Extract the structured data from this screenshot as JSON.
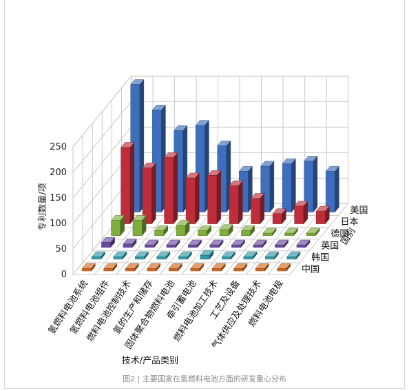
{
  "chart_data": {
    "type": "bar3d",
    "categories": [
      "氢燃料电池系统",
      "氢燃料电池组件",
      "燃料电池控制技术",
      "氢的生产和储存",
      "固体聚合物燃料电池",
      "牵引蓄电池",
      "燃料电池加工技术",
      "工艺及设备",
      "气体供应及处理技术",
      "燃料电池电极"
    ],
    "series": [
      {
        "name": "中国",
        "values": [
          5,
          5,
          5,
          5,
          5,
          5,
          5,
          5,
          5,
          5
        ],
        "color": "#d2691e"
      },
      {
        "name": "韩国",
        "values": [
          5,
          5,
          5,
          5,
          5,
          8,
          5,
          5,
          5,
          5
        ],
        "color": "#2e9aa8"
      },
      {
        "name": "英国",
        "values": [
          10,
          7,
          5,
          5,
          5,
          5,
          5,
          5,
          5,
          5
        ],
        "color": "#6a4aa0"
      },
      {
        "name": "德国",
        "values": [
          30,
          30,
          10,
          20,
          10,
          12,
          10,
          5,
          5,
          5
        ],
        "color": "#7fae3a"
      },
      {
        "name": "日本",
        "values": [
          150,
          110,
          130,
          90,
          95,
          75,
          50,
          20,
          35,
          25
        ],
        "color": "#bf2d3a"
      },
      {
        "name": "美国",
        "values": [
          250,
          200,
          160,
          170,
          130,
          80,
          90,
          95,
          100,
          80
        ],
        "color": "#3e6fbf"
      }
    ],
    "yticks": [
      "0",
      "50",
      "100",
      "150",
      "200",
      "250"
    ],
    "ylim": [
      0,
      250
    ],
    "ylabel": "专利数量/项",
    "xlabel": "技术/产品类别",
    "zlabel": "国别"
  },
  "caption": "图2 | 主要国家在氢燃料电池方面的研发重心分布"
}
